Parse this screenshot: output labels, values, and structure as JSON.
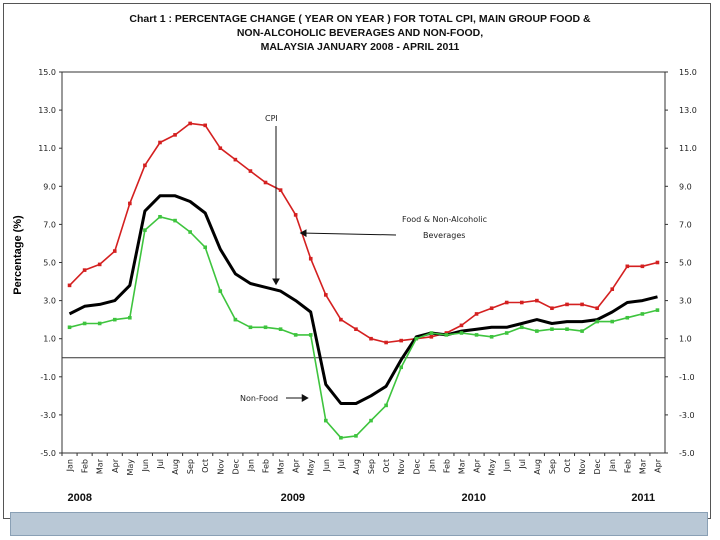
{
  "chart_data": {
    "type": "line",
    "title_lines": [
      "Chart 1 : PERCENTAGE CHANGE ( YEAR ON YEAR ) FOR TOTAL CPI, MAIN GROUP FOOD &",
      "NON-ALCOHOLIC BEVERAGES AND NON-FOOD,",
      "MALAYSIA JANUARY 2008 - APRIL 2011"
    ],
    "ylabel": "Percentage (%)",
    "ylim": [
      -5.0,
      15.0
    ],
    "yticks": [
      "15.0",
      "13.0",
      "11.0",
      "9.0",
      "7.0",
      "5.0",
      "3.0",
      "1.0",
      "-1.0",
      "-3.0",
      "-5.0"
    ],
    "ytick_values": [
      15,
      13,
      11,
      9,
      7,
      5,
      3,
      1,
      -1,
      -3,
      -5
    ],
    "categories": [
      "Jan",
      "Feb",
      "Mar",
      "Apr",
      "May",
      "Jun",
      "Jul",
      "Aug",
      "Sep",
      "Oct",
      "Nov",
      "Dec",
      "Jan",
      "Feb",
      "Mar",
      "Apr",
      "May",
      "Jun",
      "Jul",
      "Aug",
      "Sep",
      "Oct",
      "Nov",
      "Dec",
      "Jan",
      "Feb",
      "Mar",
      "Apr",
      "May",
      "Jun",
      "Jul",
      "Aug",
      "Sep",
      "Oct",
      "Nov",
      "Dec",
      "Jan",
      "Feb",
      "Mar",
      "Apr"
    ],
    "years": [
      {
        "label": "2008",
        "start_index": 0
      },
      {
        "label": "2009",
        "start_index": 12
      },
      {
        "label": "2010",
        "start_index": 24
      },
      {
        "label": "2011",
        "start_index": 36
      }
    ],
    "series": [
      {
        "name": "Food & Non-Alcoholic Beverages",
        "color": "#d42020",
        "values": [
          3.8,
          4.6,
          4.9,
          5.6,
          8.1,
          10.1,
          11.3,
          11.7,
          12.3,
          12.2,
          11.0,
          10.4,
          9.8,
          9.2,
          8.8,
          7.5,
          5.2,
          3.3,
          2.0,
          1.5,
          1.0,
          0.8,
          0.9,
          1.0,
          1.1,
          1.3,
          1.7,
          2.3,
          2.6,
          2.9,
          2.9,
          3.0,
          2.6,
          2.8,
          2.8,
          2.6,
          3.6,
          4.8,
          4.8,
          5.0
        ]
      },
      {
        "name": "CPI",
        "color": "#000000",
        "values": [
          2.3,
          2.7,
          2.8,
          3.0,
          3.8,
          7.7,
          8.5,
          8.5,
          8.2,
          7.6,
          5.7,
          4.4,
          3.9,
          3.7,
          3.5,
          3.0,
          2.4,
          -1.4,
          -2.4,
          -2.4,
          -2.0,
          -1.5,
          -0.1,
          1.1,
          1.3,
          1.2,
          1.4,
          1.5,
          1.6,
          1.6,
          1.8,
          2.0,
          1.8,
          1.9,
          1.9,
          2.0,
          2.4,
          2.9,
          3.0,
          3.2
        ]
      },
      {
        "name": "Non-Food",
        "color": "#3ec43e",
        "values": [
          1.6,
          1.8,
          1.8,
          2.0,
          2.1,
          6.7,
          7.4,
          7.2,
          6.6,
          5.8,
          3.5,
          2.0,
          1.6,
          1.6,
          1.5,
          1.2,
          1.2,
          -3.3,
          -4.2,
          -4.1,
          -3.3,
          -2.5,
          -0.5,
          1.0,
          1.3,
          1.2,
          1.3,
          1.2,
          1.1,
          1.3,
          1.6,
          1.4,
          1.5,
          1.5,
          1.4,
          1.9,
          1.9,
          2.1,
          2.3,
          2.5
        ]
      }
    ],
    "annotations": [
      {
        "label": "CPI",
        "points_to": "CPI"
      },
      {
        "label": "Food & Non-Alcoholic",
        "label2": "Beverages",
        "points_to": "Food & Non-Alcoholic Beverages"
      },
      {
        "label": "Non-Food",
        "points_to": "Non-Food"
      }
    ]
  }
}
